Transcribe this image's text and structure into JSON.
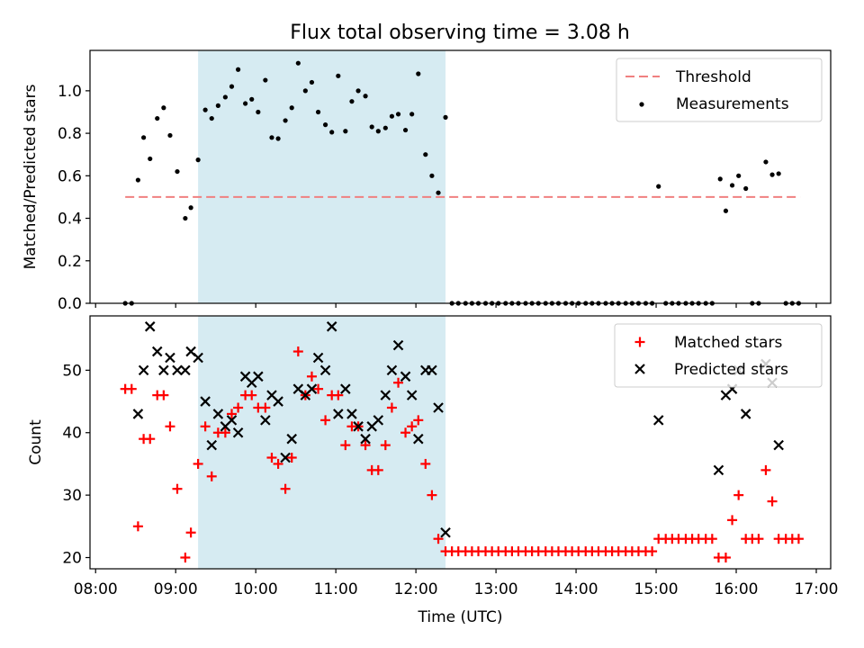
{
  "figure": {
    "title": "Flux total observing time = 3.08 h"
  },
  "chart_data": [
    {
      "type": "scatter",
      "panel": "top",
      "xlabel": "",
      "ylabel": "Matched/Predicted stars",
      "x_unit": "hours UTC",
      "xlim": [
        7.93,
        17.18
      ],
      "ylim": [
        0.0,
        1.19
      ],
      "yticks": [
        0.0,
        0.2,
        0.4,
        0.6,
        0.8,
        1.0
      ],
      "ytick_labels": [
        "0.0",
        "0.2",
        "0.4",
        "0.6",
        "0.8",
        "1.0"
      ],
      "legend_position": "top-right",
      "observing_window": {
        "start": 9.28,
        "end": 12.37,
        "color": "#add8e6"
      },
      "threshold": {
        "name": "Threshold",
        "value": 0.5,
        "x_range": [
          8.37,
          16.8
        ],
        "color": "#f08080",
        "style": "dashed"
      },
      "series": [
        {
          "name": "Measurements",
          "color": "#000000",
          "marker": "dot",
          "points": [
            [
              8.37,
              0.0
            ],
            [
              8.45,
              0.0
            ],
            [
              8.53,
              0.58
            ],
            [
              8.6,
              0.78
            ],
            [
              8.68,
              0.68
            ],
            [
              8.77,
              0.87
            ],
            [
              8.85,
              0.92
            ],
            [
              8.93,
              0.79
            ],
            [
              9.02,
              0.62
            ],
            [
              9.12,
              0.4
            ],
            [
              9.19,
              0.45
            ],
            [
              9.28,
              0.675
            ],
            [
              9.37,
              0.91
            ],
            [
              9.45,
              0.87
            ],
            [
              9.53,
              0.93
            ],
            [
              9.62,
              0.97
            ],
            [
              9.7,
              1.02
            ],
            [
              9.78,
              1.1
            ],
            [
              9.87,
              0.94
            ],
            [
              9.95,
              0.96
            ],
            [
              10.03,
              0.9
            ],
            [
              10.12,
              1.05
            ],
            [
              10.2,
              0.78
            ],
            [
              10.28,
              0.775
            ],
            [
              10.37,
              0.86
            ],
            [
              10.45,
              0.92
            ],
            [
              10.53,
              1.13
            ],
            [
              10.62,
              1.0
            ],
            [
              10.7,
              1.04
            ],
            [
              10.78,
              0.9
            ],
            [
              10.87,
              0.84
            ],
            [
              10.95,
              0.805
            ],
            [
              11.03,
              1.07
            ],
            [
              11.12,
              0.81
            ],
            [
              11.2,
              0.95
            ],
            [
              11.28,
              1.0
            ],
            [
              11.37,
              0.975
            ],
            [
              11.45,
              0.83
            ],
            [
              11.53,
              0.81
            ],
            [
              11.62,
              0.825
            ],
            [
              11.7,
              0.88
            ],
            [
              11.78,
              0.89
            ],
            [
              11.87,
              0.815
            ],
            [
              11.95,
              0.89
            ],
            [
              12.03,
              1.08
            ],
            [
              12.12,
              0.7
            ],
            [
              12.2,
              0.6
            ],
            [
              12.28,
              0.52
            ],
            [
              12.37,
              0.875
            ],
            [
              12.45,
              0.0
            ],
            [
              12.53,
              0.0
            ],
            [
              12.62,
              0.0
            ],
            [
              12.7,
              0.0
            ],
            [
              12.78,
              0.0
            ],
            [
              12.87,
              0.0
            ],
            [
              12.95,
              0.0
            ],
            [
              13.03,
              0.0
            ],
            [
              13.12,
              0.0
            ],
            [
              13.2,
              0.0
            ],
            [
              13.28,
              0.0
            ],
            [
              13.37,
              0.0
            ],
            [
              13.45,
              0.0
            ],
            [
              13.53,
              0.0
            ],
            [
              13.62,
              0.0
            ],
            [
              13.7,
              0.0
            ],
            [
              13.78,
              0.0
            ],
            [
              13.87,
              0.0
            ],
            [
              13.95,
              0.0
            ],
            [
              14.03,
              0.0
            ],
            [
              14.12,
              0.0
            ],
            [
              14.2,
              0.0
            ],
            [
              14.28,
              0.0
            ],
            [
              14.37,
              0.0
            ],
            [
              14.45,
              0.0
            ],
            [
              14.53,
              0.0
            ],
            [
              14.62,
              0.0
            ],
            [
              14.7,
              0.0
            ],
            [
              14.78,
              0.0
            ],
            [
              14.87,
              0.0
            ],
            [
              14.95,
              0.0
            ],
            [
              15.03,
              0.55
            ],
            [
              15.12,
              0.0
            ],
            [
              15.2,
              0.0
            ],
            [
              15.28,
              0.0
            ],
            [
              15.37,
              0.0
            ],
            [
              15.45,
              0.0
            ],
            [
              15.53,
              0.0
            ],
            [
              15.62,
              0.0
            ],
            [
              15.7,
              0.0
            ],
            [
              15.8,
              0.585
            ],
            [
              15.87,
              0.435
            ],
            [
              15.95,
              0.555
            ],
            [
              16.03,
              0.6
            ],
            [
              16.12,
              0.54
            ],
            [
              16.2,
              0.0
            ],
            [
              16.28,
              0.0
            ],
            [
              16.37,
              0.665
            ],
            [
              16.45,
              0.605
            ],
            [
              16.53,
              0.61
            ],
            [
              16.62,
              0.0
            ],
            [
              16.7,
              0.0
            ],
            [
              16.78,
              0.0
            ]
          ]
        }
      ]
    },
    {
      "type": "scatter",
      "panel": "bottom",
      "xlabel": "Time (UTC)",
      "ylabel": "Count",
      "x_unit": "hours UTC",
      "xlim": [
        7.93,
        17.18
      ],
      "ylim": [
        18.2,
        58.7
      ],
      "xticks": [
        8,
        9,
        10,
        11,
        12,
        13,
        14,
        15,
        16,
        17
      ],
      "xtick_labels": [
        "08:00",
        "09:00",
        "10:00",
        "11:00",
        "12:00",
        "13:00",
        "14:00",
        "15:00",
        "16:00",
        "17:00"
      ],
      "yticks": [
        20,
        30,
        40,
        50
      ],
      "ytick_labels": [
        "20",
        "30",
        "40",
        "50"
      ],
      "legend_position": "top-right",
      "observing_window": {
        "start": 9.28,
        "end": 12.37,
        "color": "#add8e6"
      },
      "series": [
        {
          "name": "Matched stars",
          "color": "#ff0000",
          "marker": "plus",
          "points": [
            [
              8.37,
              47
            ],
            [
              8.45,
              47
            ],
            [
              8.53,
              25
            ],
            [
              8.6,
              39
            ],
            [
              8.68,
              39
            ],
            [
              8.77,
              46
            ],
            [
              8.85,
              46
            ],
            [
              8.93,
              41
            ],
            [
              9.02,
              31
            ],
            [
              9.12,
              20
            ],
            [
              9.19,
              24
            ],
            [
              9.28,
              35
            ],
            [
              9.37,
              41
            ],
            [
              9.45,
              33
            ],
            [
              9.53,
              40
            ],
            [
              9.62,
              40
            ],
            [
              9.7,
              43
            ],
            [
              9.78,
              44
            ],
            [
              9.87,
              46
            ],
            [
              9.95,
              46
            ],
            [
              10.03,
              44
            ],
            [
              10.12,
              44
            ],
            [
              10.2,
              36
            ],
            [
              10.28,
              35
            ],
            [
              10.37,
              31
            ],
            [
              10.45,
              36
            ],
            [
              10.53,
              53
            ],
            [
              10.62,
              46
            ],
            [
              10.7,
              49
            ],
            [
              10.78,
              47
            ],
            [
              10.87,
              42
            ],
            [
              10.95,
              46
            ],
            [
              11.03,
              46
            ],
            [
              11.12,
              38
            ],
            [
              11.2,
              41
            ],
            [
              11.28,
              41
            ],
            [
              11.37,
              38
            ],
            [
              11.45,
              34
            ],
            [
              11.53,
              34
            ],
            [
              11.62,
              38
            ],
            [
              11.7,
              44
            ],
            [
              11.78,
              48
            ],
            [
              11.87,
              40
            ],
            [
              11.95,
              41
            ],
            [
              12.03,
              42
            ],
            [
              12.12,
              35
            ],
            [
              12.2,
              30
            ],
            [
              12.28,
              23
            ],
            [
              12.37,
              21
            ],
            [
              12.45,
              21
            ],
            [
              12.53,
              21
            ],
            [
              12.62,
              21
            ],
            [
              12.7,
              21
            ],
            [
              12.78,
              21
            ],
            [
              12.87,
              21
            ],
            [
              12.95,
              21
            ],
            [
              13.03,
              21
            ],
            [
              13.12,
              21
            ],
            [
              13.2,
              21
            ],
            [
              13.28,
              21
            ],
            [
              13.37,
              21
            ],
            [
              13.45,
              21
            ],
            [
              13.53,
              21
            ],
            [
              13.62,
              21
            ],
            [
              13.7,
              21
            ],
            [
              13.78,
              21
            ],
            [
              13.87,
              21
            ],
            [
              13.95,
              21
            ],
            [
              14.03,
              21
            ],
            [
              14.12,
              21
            ],
            [
              14.2,
              21
            ],
            [
              14.28,
              21
            ],
            [
              14.37,
              21
            ],
            [
              14.45,
              21
            ],
            [
              14.53,
              21
            ],
            [
              14.62,
              21
            ],
            [
              14.7,
              21
            ],
            [
              14.78,
              21
            ],
            [
              14.87,
              21
            ],
            [
              14.95,
              21
            ],
            [
              15.03,
              23
            ],
            [
              15.12,
              23
            ],
            [
              15.2,
              23
            ],
            [
              15.28,
              23
            ],
            [
              15.37,
              23
            ],
            [
              15.45,
              23
            ],
            [
              15.53,
              23
            ],
            [
              15.62,
              23
            ],
            [
              15.7,
              23
            ],
            [
              15.78,
              20
            ],
            [
              15.87,
              20
            ],
            [
              15.95,
              26
            ],
            [
              16.03,
              30
            ],
            [
              16.12,
              23
            ],
            [
              16.2,
              23
            ],
            [
              16.28,
              23
            ],
            [
              16.37,
              34
            ],
            [
              16.45,
              29
            ],
            [
              16.53,
              23
            ],
            [
              16.62,
              23
            ],
            [
              16.7,
              23
            ],
            [
              16.78,
              23
            ]
          ]
        },
        {
          "name": "Predicted stars",
          "color": "#000000",
          "marker": "x",
          "points": [
            [
              8.53,
              43
            ],
            [
              8.6,
              50
            ],
            [
              8.68,
              57
            ],
            [
              8.77,
              53
            ],
            [
              8.85,
              50
            ],
            [
              8.93,
              52
            ],
            [
              9.02,
              50
            ],
            [
              9.12,
              50
            ],
            [
              9.19,
              53
            ],
            [
              9.28,
              52
            ],
            [
              9.37,
              45
            ],
            [
              9.45,
              38
            ],
            [
              9.53,
              43
            ],
            [
              9.62,
              41
            ],
            [
              9.7,
              42
            ],
            [
              9.78,
              40
            ],
            [
              9.87,
              49
            ],
            [
              9.95,
              48
            ],
            [
              10.03,
              49
            ],
            [
              10.12,
              42
            ],
            [
              10.2,
              46
            ],
            [
              10.28,
              45
            ],
            [
              10.37,
              36
            ],
            [
              10.45,
              39
            ],
            [
              10.53,
              47
            ],
            [
              10.62,
              46
            ],
            [
              10.7,
              47
            ],
            [
              10.78,
              52
            ],
            [
              10.87,
              50
            ],
            [
              10.95,
              57
            ],
            [
              11.03,
              43
            ],
            [
              11.12,
              47
            ],
            [
              11.2,
              43
            ],
            [
              11.28,
              41
            ],
            [
              11.37,
              39
            ],
            [
              11.45,
              41
            ],
            [
              11.53,
              42
            ],
            [
              11.62,
              46
            ],
            [
              11.7,
              50
            ],
            [
              11.78,
              54
            ],
            [
              11.87,
              49
            ],
            [
              11.95,
              46
            ],
            [
              12.03,
              39
            ],
            [
              12.12,
              50
            ],
            [
              12.2,
              50
            ],
            [
              12.28,
              44
            ],
            [
              12.37,
              24
            ],
            [
              15.03,
              42
            ],
            [
              15.78,
              34
            ],
            [
              15.87,
              46
            ],
            [
              15.95,
              47
            ],
            [
              16.03,
              50
            ],
            [
              16.12,
              43
            ],
            [
              16.37,
              51
            ],
            [
              16.45,
              48
            ],
            [
              16.53,
              38
            ]
          ]
        }
      ]
    }
  ]
}
